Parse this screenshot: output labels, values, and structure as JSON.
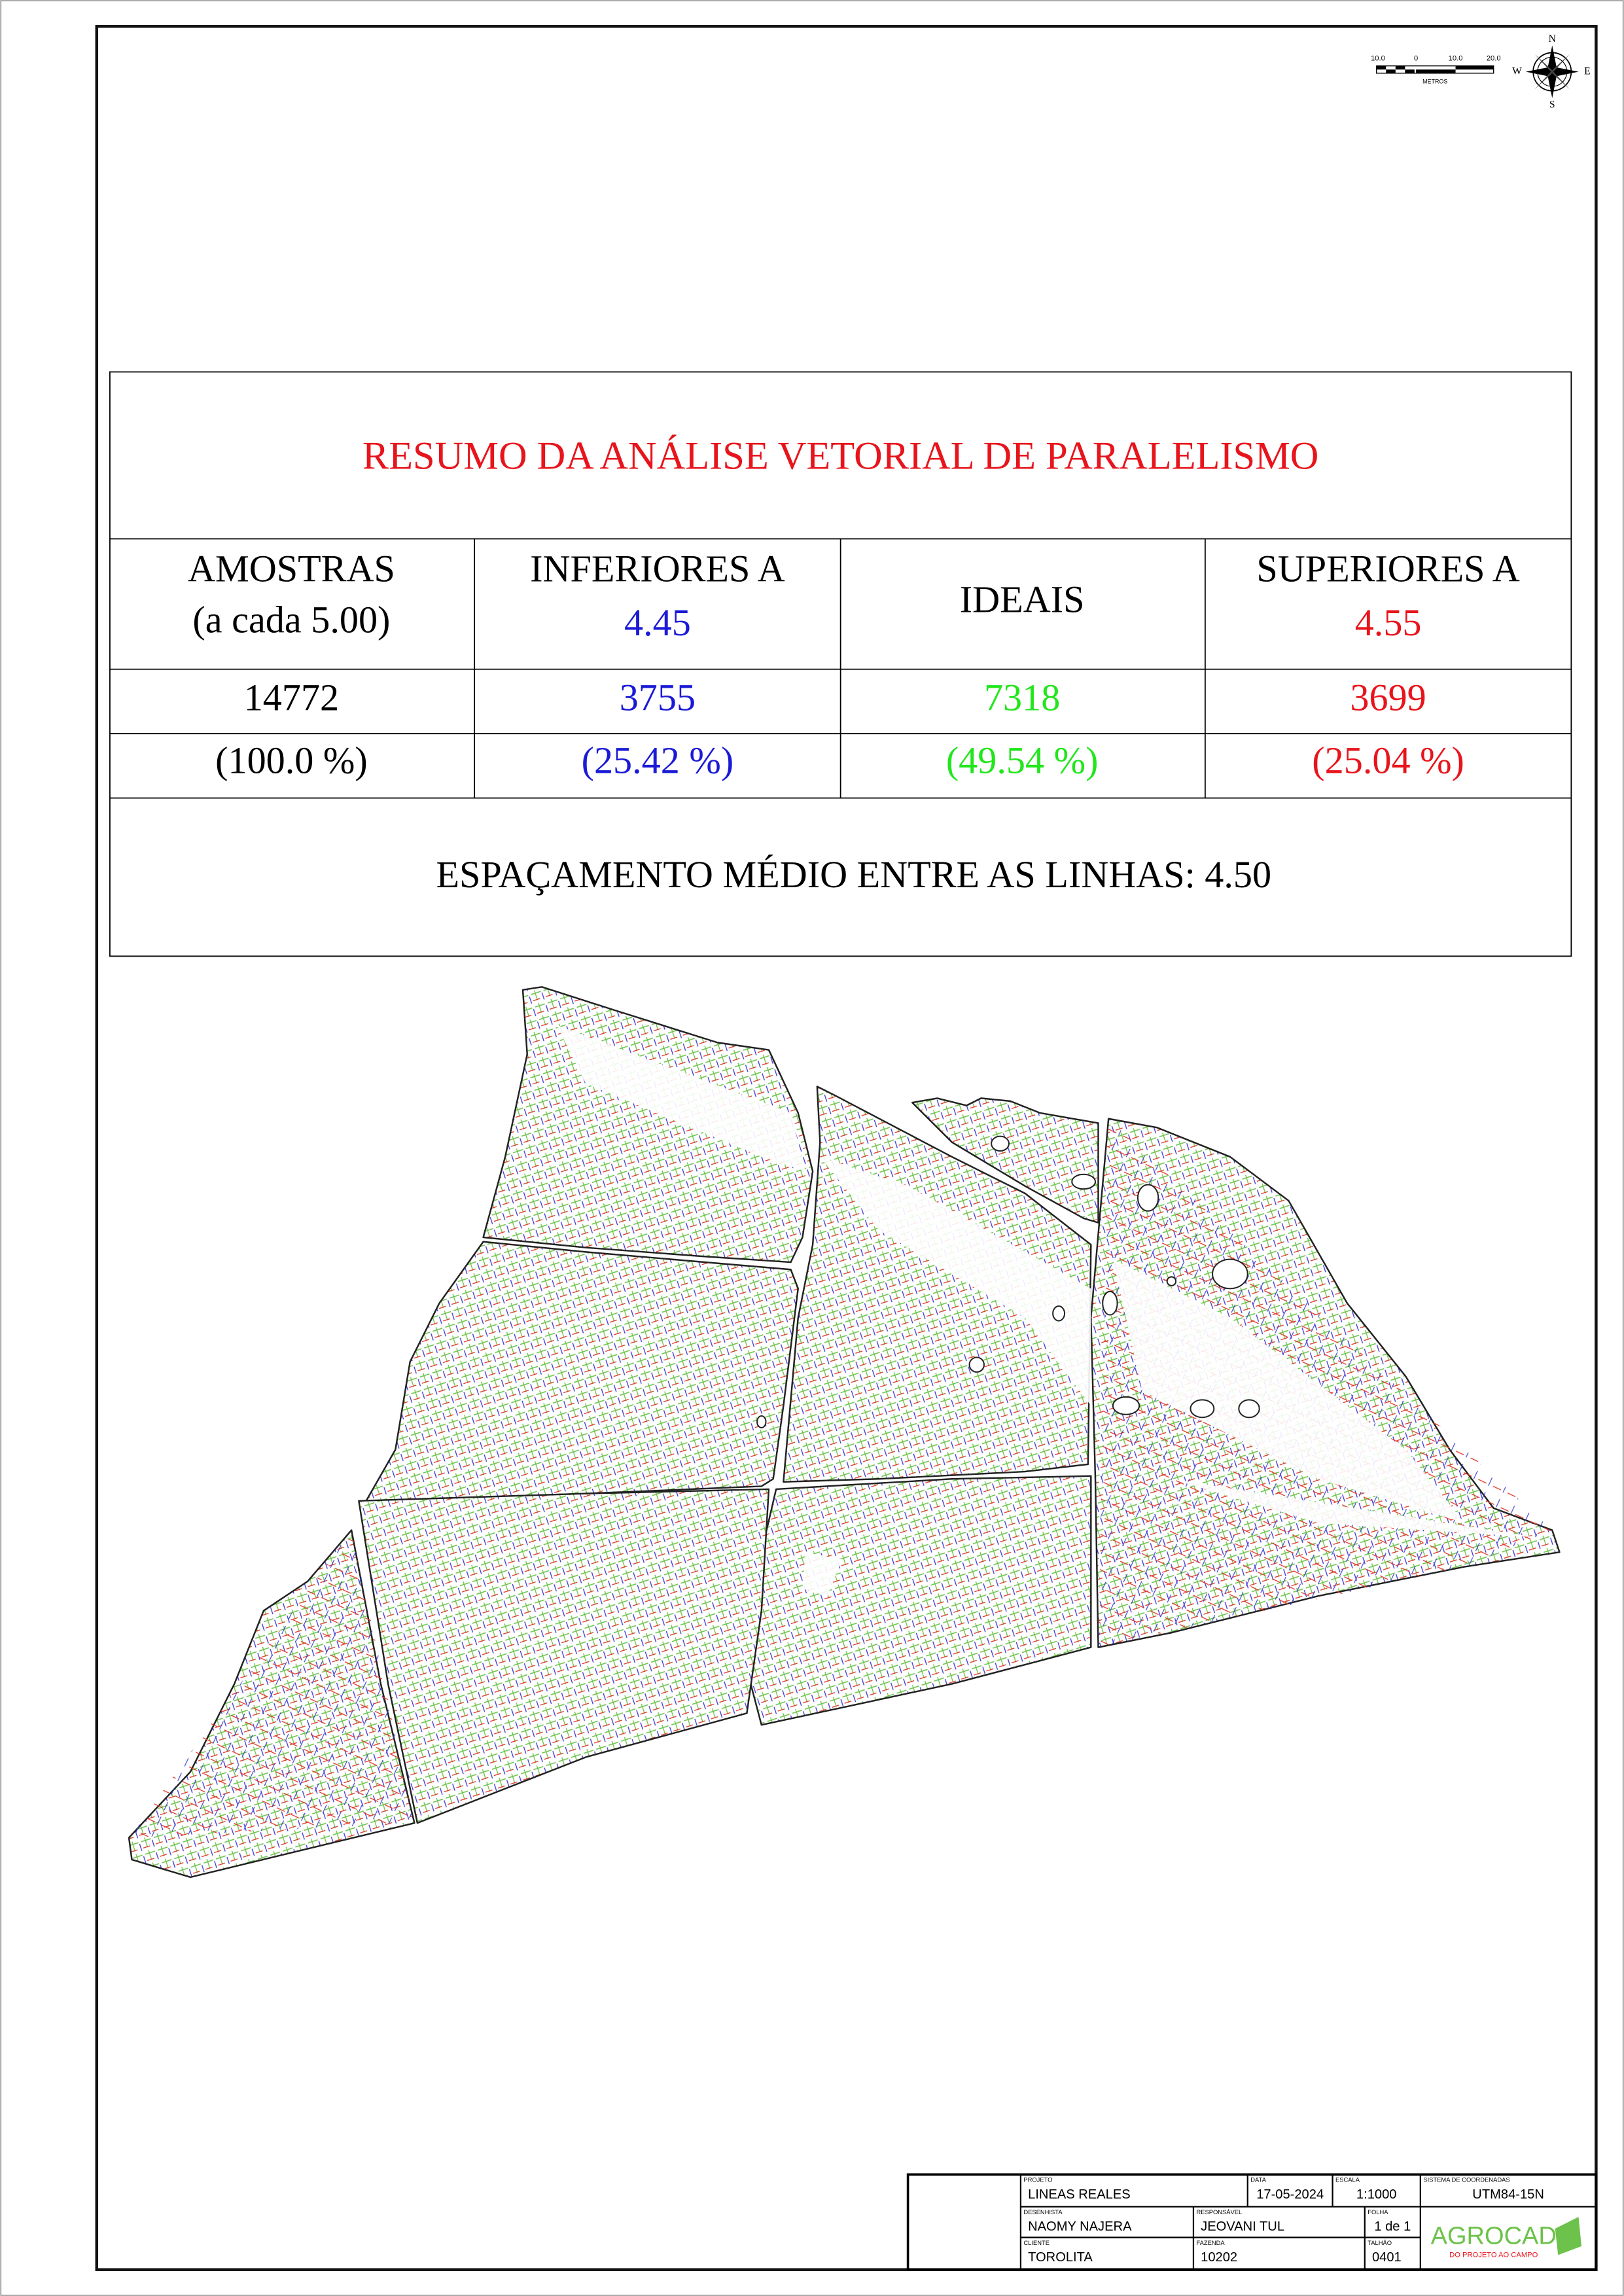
{
  "scale_bar": {
    "labels": [
      "10.0",
      "0",
      "10.0",
      "20.0"
    ],
    "unit": "METROS"
  },
  "compass": {
    "north": "N",
    "south": "S",
    "east": "E",
    "west": "W"
  },
  "summary": {
    "title": "RESUMO DA ANÁLISE VETORIAL DE PARALELISMO",
    "headers": [
      [
        "AMOSTRAS",
        "(a cada 5.00)"
      ],
      [
        "INFERIORES A",
        "4.45"
      ],
      [
        "IDEAIS"
      ],
      [
        "SUPERIORES A",
        "4.55"
      ]
    ],
    "counts": [
      "14772",
      "3755",
      "7318",
      "3699"
    ],
    "percents": [
      "(100.0 %)",
      "(25.42 %)",
      "(49.54 %)",
      "(25.04 %)"
    ],
    "footer": "ESPAÇAMENTO MÉDIO ENTRE AS LINHAS:  4.50"
  },
  "title_block": {
    "fields": [
      {
        "label": "PROJETO",
        "value": "LINEAS REALES"
      },
      {
        "label": "DATA",
        "value": "17-05-2024"
      },
      {
        "label": "ESCALA",
        "value": "1:1000"
      },
      {
        "label": "SISTEMA DE COORDENADAS",
        "value": "UTM84-15N"
      },
      {
        "label": "DESENHISTA",
        "value": "NAOMY NAJERA"
      },
      {
        "label": "RESPONSÁVEL",
        "value": "JEOVANI TUL"
      },
      {
        "label": "FOLHA",
        "value": "1 de 1"
      },
      {
        "label": "CLIENTE",
        "value": "TOROLITA"
      },
      {
        "label": "FAZENDA",
        "value": "10202"
      },
      {
        "label": "TALHÃO",
        "value": "0401"
      }
    ],
    "logo": "AGROCAD",
    "slogan": "DO PROJETO AO CAMPO"
  }
}
